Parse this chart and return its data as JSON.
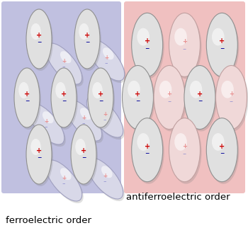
{
  "fig_width": 3.5,
  "fig_height": 3.22,
  "dpi": 100,
  "bg_color": "#ffffff",
  "left_panel_bg": "#c0c0e0",
  "right_panel_bg": "#f0c0c0",
  "left_label": "ferroelectric order",
  "right_label": "antiferroelectric order",
  "plus_strong": "#cc0000",
  "minus_strong": "#000099",
  "plus_weak": "#e89090",
  "minus_weak": "#9090d0",
  "ellipse_fc_strong": "#e0e0e0",
  "ellipse_fc_strong2": "#d8d8d8",
  "ellipse_fc_weak": "#f0d8d8",
  "ellipse_ec_strong": "#909090",
  "ellipse_ec_weak": "#c0a0a0"
}
